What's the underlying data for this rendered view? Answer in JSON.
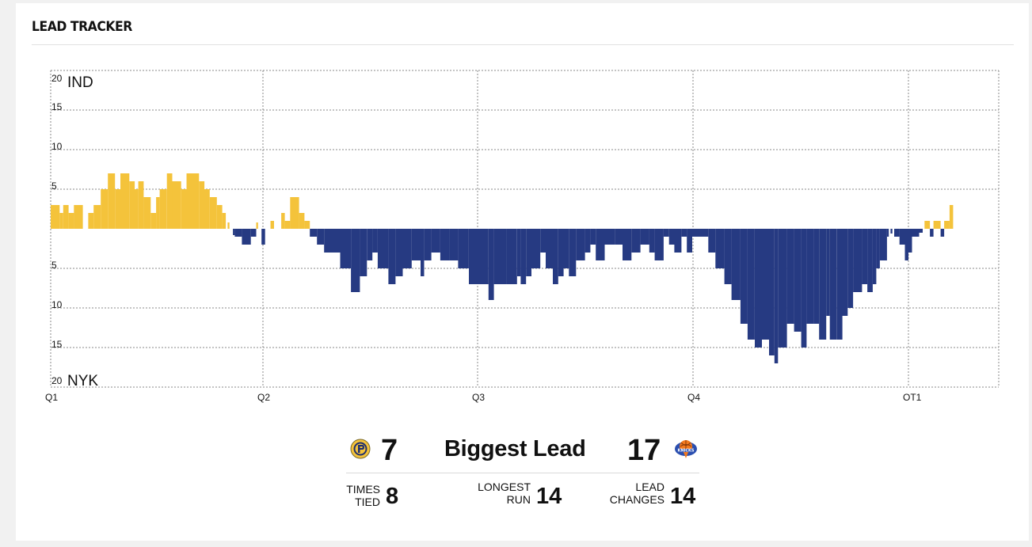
{
  "title": "LEAD TRACKER",
  "chart_data": {
    "type": "bar",
    "series": [
      {
        "name": "IND",
        "color": "#f4c33b"
      },
      {
        "name": "NYK",
        "color": "#263a82"
      }
    ],
    "ylim": [
      -20,
      20
    ],
    "yticks": [
      "20",
      "15",
      "10",
      "5",
      "",
      "5",
      "10",
      "15",
      "20"
    ],
    "top_label": "IND",
    "bottom_label": "NYK",
    "period_labels": [
      "Q1",
      "Q2",
      "Q3",
      "Q4",
      "OT1"
    ],
    "x_note": "time in game minutes (0 = tip-off, 53 = end of OT1); positive = IND lead, negative = NYK lead",
    "segments": [
      [
        0.0,
        0.5,
        3
      ],
      [
        0.5,
        0.7,
        2
      ],
      [
        0.7,
        1.0,
        3
      ],
      [
        1.0,
        1.3,
        2
      ],
      [
        1.3,
        1.8,
        3
      ],
      [
        2.1,
        2.4,
        2
      ],
      [
        2.4,
        2.8,
        3
      ],
      [
        2.8,
        3.2,
        5
      ],
      [
        3.2,
        3.6,
        7
      ],
      [
        3.6,
        3.9,
        5
      ],
      [
        3.9,
        4.4,
        7
      ],
      [
        4.4,
        4.7,
        6
      ],
      [
        4.7,
        4.9,
        5
      ],
      [
        4.9,
        5.2,
        6
      ],
      [
        5.2,
        5.6,
        4
      ],
      [
        5.6,
        5.9,
        2
      ],
      [
        5.9,
        6.1,
        4
      ],
      [
        6.1,
        6.5,
        5
      ],
      [
        6.5,
        6.8,
        7
      ],
      [
        6.8,
        7.3,
        6
      ],
      [
        7.3,
        7.6,
        5
      ],
      [
        7.6,
        8.3,
        7
      ],
      [
        8.3,
        8.6,
        6
      ],
      [
        8.6,
        8.9,
        5
      ],
      [
        8.9,
        9.3,
        4
      ],
      [
        9.3,
        9.6,
        3
      ],
      [
        9.6,
        9.8,
        2
      ],
      [
        9.9,
        10.0,
        0.8
      ],
      [
        10.2,
        10.3,
        -0.8
      ],
      [
        10.3,
        10.7,
        -1
      ],
      [
        10.7,
        11.2,
        -2
      ],
      [
        11.2,
        11.5,
        -1
      ],
      [
        11.5,
        11.6,
        0.8
      ],
      [
        11.8,
        12.0,
        -2
      ],
      [
        12.3,
        12.5,
        1
      ],
      [
        12.9,
        13.1,
        2
      ],
      [
        13.1,
        13.4,
        1
      ],
      [
        13.4,
        13.9,
        4
      ],
      [
        13.9,
        14.2,
        2
      ],
      [
        14.2,
        14.5,
        1
      ],
      [
        14.5,
        14.9,
        -1
      ],
      [
        14.9,
        15.3,
        -2
      ],
      [
        15.3,
        16.2,
        -3
      ],
      [
        16.2,
        16.8,
        -5
      ],
      [
        16.8,
        17.3,
        -8
      ],
      [
        17.3,
        17.7,
        -6
      ],
      [
        17.7,
        18.0,
        -4
      ],
      [
        18.0,
        18.3,
        -3
      ],
      [
        18.3,
        18.9,
        -5
      ],
      [
        18.9,
        19.3,
        -7
      ],
      [
        19.3,
        19.7,
        -6
      ],
      [
        19.7,
        20.2,
        -5
      ],
      [
        20.2,
        20.7,
        -4
      ],
      [
        20.7,
        20.9,
        -6
      ],
      [
        20.9,
        21.3,
        -4
      ],
      [
        21.3,
        21.8,
        -3
      ],
      [
        21.8,
        22.3,
        -4
      ],
      [
        22.3,
        22.8,
        -4
      ],
      [
        22.8,
        23.4,
        -5
      ],
      [
        23.4,
        23.8,
        -7
      ],
      [
        23.8,
        24.5,
        -7
      ],
      [
        24.5,
        24.8,
        -9
      ],
      [
        24.8,
        25.5,
        -7
      ],
      [
        25.5,
        26.1,
        -7
      ],
      [
        26.1,
        26.3,
        -6
      ],
      [
        26.3,
        26.6,
        -7
      ],
      [
        26.6,
        26.9,
        -6
      ],
      [
        26.9,
        27.4,
        -5
      ],
      [
        27.4,
        27.7,
        -3
      ],
      [
        27.7,
        28.1,
        -5
      ],
      [
        28.1,
        28.4,
        -7
      ],
      [
        28.4,
        28.7,
        -6
      ],
      [
        28.7,
        29.0,
        -5
      ],
      [
        29.0,
        29.4,
        -6
      ],
      [
        29.4,
        29.9,
        -4
      ],
      [
        29.9,
        30.2,
        -3
      ],
      [
        30.2,
        30.5,
        -2
      ],
      [
        30.5,
        31.0,
        -4
      ],
      [
        31.0,
        31.6,
        -2
      ],
      [
        31.6,
        32.0,
        -2
      ],
      [
        32.0,
        32.5,
        -4
      ],
      [
        32.5,
        33.0,
        -3
      ],
      [
        33.0,
        33.5,
        -2
      ],
      [
        33.5,
        33.8,
        -3
      ],
      [
        33.8,
        34.3,
        -4
      ],
      [
        34.3,
        34.6,
        -1
      ],
      [
        34.6,
        34.9,
        -2
      ],
      [
        34.9,
        35.3,
        -3
      ],
      [
        35.3,
        35.6,
        -1
      ],
      [
        35.6,
        35.9,
        -3
      ],
      [
        35.9,
        36.3,
        -1
      ],
      [
        36.3,
        36.8,
        -1
      ],
      [
        36.8,
        37.2,
        -3
      ],
      [
        37.2,
        37.7,
        -5
      ],
      [
        37.7,
        38.1,
        -7
      ],
      [
        38.1,
        38.6,
        -9
      ],
      [
        38.6,
        39.0,
        -12
      ],
      [
        39.0,
        39.4,
        -14
      ],
      [
        39.4,
        39.8,
        -15
      ],
      [
        39.8,
        40.2,
        -14
      ],
      [
        40.2,
        40.5,
        -16
      ],
      [
        40.5,
        40.7,
        -17
      ],
      [
        40.7,
        41.2,
        -15
      ],
      [
        41.2,
        41.6,
        -12
      ],
      [
        41.6,
        42.0,
        -13
      ],
      [
        42.0,
        42.3,
        -15
      ],
      [
        42.3,
        42.7,
        -12
      ],
      [
        42.7,
        43.0,
        -12
      ],
      [
        43.0,
        43.4,
        -14
      ],
      [
        43.4,
        43.6,
        -11
      ],
      [
        43.6,
        44.0,
        -14
      ],
      [
        44.0,
        44.3,
        -14
      ],
      [
        44.3,
        44.6,
        -11
      ],
      [
        44.6,
        44.9,
        -10
      ],
      [
        44.9,
        45.4,
        -8
      ],
      [
        45.4,
        45.7,
        -7
      ],
      [
        45.7,
        46.0,
        -8
      ],
      [
        46.0,
        46.2,
        -7
      ],
      [
        46.2,
        46.4,
        -5
      ],
      [
        46.4,
        46.8,
        -4
      ],
      [
        46.8,
        46.9,
        -1
      ],
      [
        47.0,
        47.1,
        -0.6
      ],
      [
        47.2,
        47.5,
        -1
      ],
      [
        47.5,
        47.8,
        -2
      ],
      [
        47.8,
        48.0,
        -4
      ],
      [
        48.0,
        48.2,
        -3
      ],
      [
        48.2,
        48.4,
        -1
      ],
      [
        48.4,
        48.6,
        -1
      ],
      [
        48.6,
        48.8,
        -0.5
      ],
      [
        48.9,
        49.2,
        1
      ],
      [
        49.2,
        49.4,
        -1
      ],
      [
        49.4,
        49.8,
        1
      ],
      [
        49.8,
        50.0,
        -1
      ],
      [
        50.0,
        50.3,
        1
      ],
      [
        50.3,
        50.5,
        3
      ]
    ]
  },
  "stats": {
    "biggest_lead": {
      "label": "Biggest Lead",
      "ind": "7",
      "nyk": "17"
    },
    "times_tied": {
      "label_1": "TIMES",
      "label_2": "TIED",
      "value": "8"
    },
    "longest_run": {
      "label_1": "LONGEST",
      "label_2": "RUN",
      "value": "14"
    },
    "lead_changes": {
      "label_1": "LEAD",
      "label_2": "CHANGES",
      "value": "14"
    }
  },
  "colors": {
    "ind": "#f4c33b",
    "nyk": "#263a82",
    "grid": "#8a8a8a"
  },
  "icons": {
    "ind_logo": "pacers-logo-icon",
    "nyk_logo": "knicks-logo-icon"
  }
}
